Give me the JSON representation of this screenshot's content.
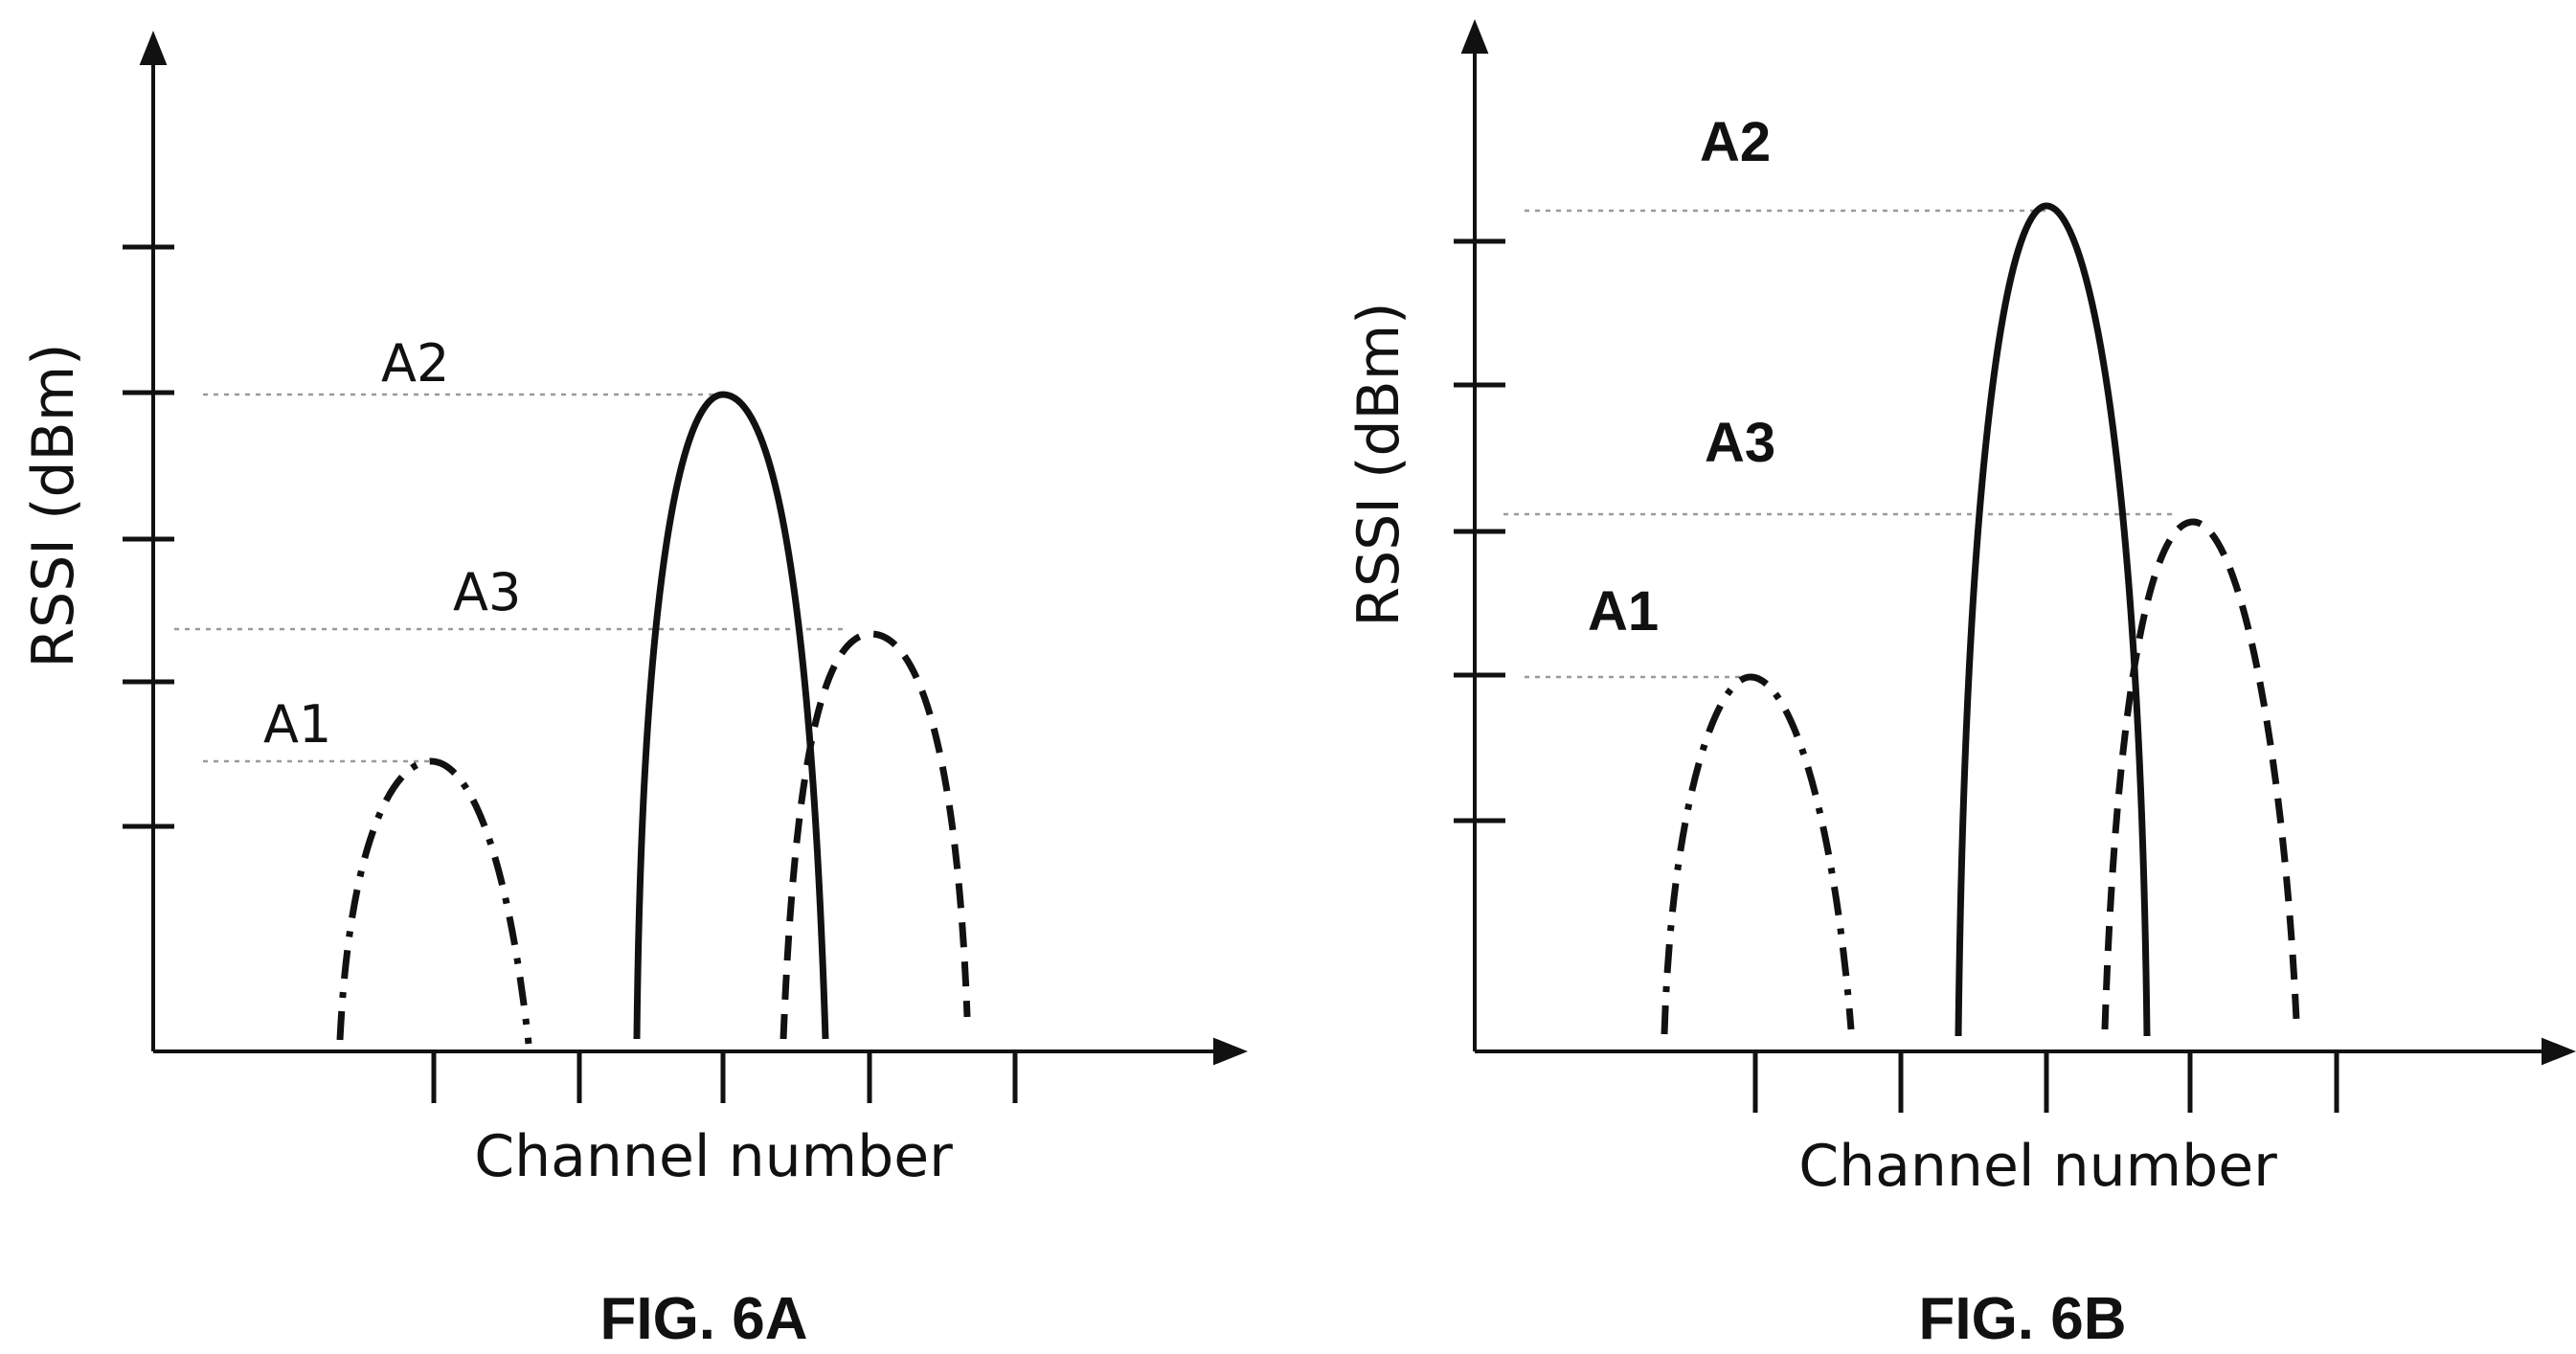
{
  "panels": [
    {
      "caption": "FIG. 6A",
      "x_axis_label": "Channel number",
      "y_axis_label": "RSSI (dBm)",
      "curves": [
        {
          "label": "A1",
          "style": "dash-dot"
        },
        {
          "label": "A2",
          "style": "solid"
        },
        {
          "label": "A3",
          "style": "dashed"
        }
      ]
    },
    {
      "caption": "FIG. 6B",
      "x_axis_label": "Channel number",
      "y_axis_label": "RSSI (dBm)",
      "curves": [
        {
          "label": "A1",
          "style": "dash-dot"
        },
        {
          "label": "A2",
          "style": "solid"
        },
        {
          "label": "A3",
          "style": "dashed"
        }
      ]
    }
  ]
}
